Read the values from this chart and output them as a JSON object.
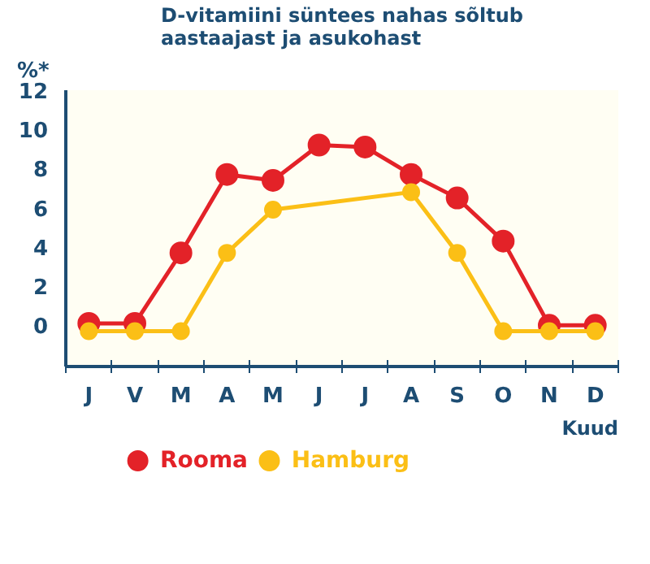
{
  "chart_data": {
    "type": "line",
    "title": "D-vitamiini süntees nahas sõltub\naastaajast ja asukohast",
    "ylabel": "%*",
    "xlabel": "Kuud",
    "categories": [
      "J",
      "V",
      "M",
      "A",
      "M",
      "J",
      "J",
      "A",
      "S",
      "O",
      "N",
      "D"
    ],
    "series": [
      {
        "name": "Rooma",
        "color": "#e32228",
        "values": [
          0.1,
          0.1,
          3.7,
          7.7,
          7.4,
          9.2,
          9.1,
          7.7,
          6.5,
          4.3,
          0,
          0
        ]
      },
      {
        "name": "Hamburg",
        "color": "#fbbf16",
        "values": [
          -0.3,
          -0.3,
          -0.3,
          3.7,
          5.9,
          null,
          null,
          6.8,
          3.7,
          -0.3,
          -0.3,
          -0.3
        ]
      }
    ],
    "ylim": [
      -2.1,
      12
    ],
    "yticks": [
      0,
      2,
      4,
      6,
      8,
      10,
      12
    ],
    "marker": "circle",
    "line_style": "solid",
    "grid": false,
    "legend": "bottom"
  }
}
